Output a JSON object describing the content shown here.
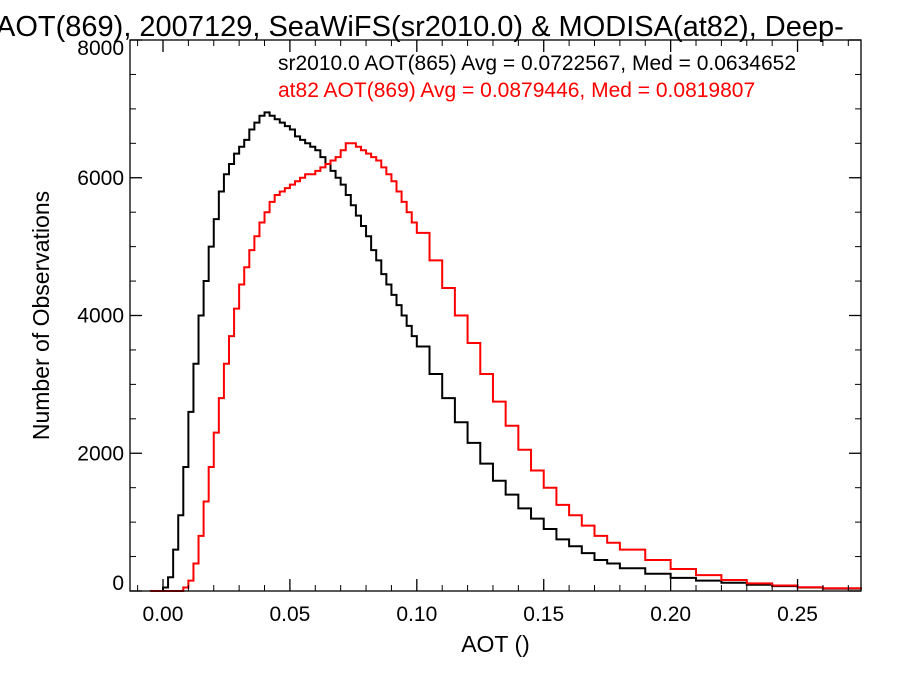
{
  "chart_data": {
    "type": "line",
    "title": "AOT(869), 2007129, SeaWiFS(sr2010.0) & MODISA(at82), Deep-",
    "xlabel": "AOT ()",
    "ylabel": "Number of Observations",
    "xlim": [
      -0.013,
      0.275
    ],
    "ylim": [
      0,
      8000
    ],
    "x_ticks": [
      0.0,
      0.05,
      0.1,
      0.15,
      0.2,
      0.25
    ],
    "x_tick_labels": [
      "0.00",
      "0.05",
      "0.10",
      "0.15",
      "0.20",
      "0.25"
    ],
    "y_ticks": [
      0,
      2000,
      4000,
      6000,
      8000
    ],
    "y_tick_labels": [
      "0",
      "2000",
      "4000",
      "6000",
      "8000"
    ],
    "grid": false,
    "legend_position": "top-right",
    "series": [
      {
        "name": "sr2010.0",
        "legend_text": "sr2010.0 AOT(865) Avg = 0.0722567, Med = 0.0634652",
        "color": "#000000",
        "x": [
          -0.005,
          0.0,
          0.002,
          0.004,
          0.006,
          0.008,
          0.01,
          0.012,
          0.014,
          0.016,
          0.018,
          0.02,
          0.022,
          0.024,
          0.026,
          0.028,
          0.03,
          0.032,
          0.034,
          0.036,
          0.038,
          0.04,
          0.042,
          0.044,
          0.046,
          0.048,
          0.05,
          0.052,
          0.054,
          0.056,
          0.058,
          0.06,
          0.062,
          0.064,
          0.066,
          0.068,
          0.07,
          0.072,
          0.074,
          0.076,
          0.078,
          0.08,
          0.082,
          0.084,
          0.086,
          0.088,
          0.09,
          0.092,
          0.094,
          0.096,
          0.098,
          0.1,
          0.105,
          0.11,
          0.115,
          0.12,
          0.125,
          0.13,
          0.135,
          0.14,
          0.145,
          0.15,
          0.155,
          0.16,
          0.165,
          0.17,
          0.175,
          0.18,
          0.19,
          0.2,
          0.21,
          0.22,
          0.23,
          0.24,
          0.25,
          0.26,
          0.275
        ],
        "values": [
          0,
          50,
          200,
          600,
          1100,
          1800,
          2600,
          3300,
          4000,
          4500,
          5000,
          5400,
          5800,
          6050,
          6200,
          6350,
          6450,
          6550,
          6700,
          6800,
          6900,
          6950,
          6900,
          6850,
          6800,
          6750,
          6700,
          6600,
          6550,
          6500,
          6450,
          6400,
          6300,
          6200,
          6100,
          6000,
          5900,
          5750,
          5600,
          5450,
          5300,
          5150,
          4950,
          4800,
          4600,
          4450,
          4300,
          4150,
          4000,
          3850,
          3700,
          3550,
          3150,
          2800,
          2450,
          2150,
          1850,
          1600,
          1400,
          1200,
          1050,
          900,
          750,
          650,
          550,
          450,
          400,
          330,
          250,
          190,
          150,
          120,
          90,
          70,
          50,
          35,
          20
        ]
      },
      {
        "name": "at82",
        "legend_text": "at82 AOT(869) Avg = 0.0879446, Med = 0.0819807",
        "color": "#ff0000",
        "x": [
          -0.005,
          0.004,
          0.008,
          0.01,
          0.012,
          0.014,
          0.016,
          0.018,
          0.02,
          0.022,
          0.024,
          0.026,
          0.028,
          0.03,
          0.032,
          0.034,
          0.036,
          0.038,
          0.04,
          0.042,
          0.044,
          0.046,
          0.048,
          0.05,
          0.052,
          0.054,
          0.056,
          0.058,
          0.06,
          0.062,
          0.064,
          0.066,
          0.068,
          0.07,
          0.072,
          0.074,
          0.076,
          0.078,
          0.08,
          0.082,
          0.084,
          0.086,
          0.088,
          0.09,
          0.092,
          0.094,
          0.096,
          0.098,
          0.1,
          0.105,
          0.11,
          0.115,
          0.12,
          0.125,
          0.13,
          0.135,
          0.14,
          0.145,
          0.15,
          0.155,
          0.16,
          0.165,
          0.17,
          0.175,
          0.18,
          0.19,
          0.2,
          0.21,
          0.22,
          0.23,
          0.24,
          0.25,
          0.26,
          0.275
        ],
        "values": [
          0,
          0,
          50,
          150,
          400,
          800,
          1300,
          1800,
          2300,
          2800,
          3300,
          3700,
          4100,
          4450,
          4700,
          4950,
          5150,
          5350,
          5500,
          5650,
          5750,
          5800,
          5850,
          5900,
          5950,
          6000,
          6050,
          6050,
          6100,
          6150,
          6200,
          6250,
          6300,
          6400,
          6500,
          6500,
          6450,
          6400,
          6350,
          6300,
          6250,
          6150,
          6050,
          5950,
          5800,
          5650,
          5500,
          5350,
          5200,
          4800,
          4400,
          4000,
          3600,
          3150,
          2750,
          2400,
          2050,
          1750,
          1500,
          1250,
          1100,
          950,
          800,
          700,
          600,
          450,
          320,
          230,
          160,
          110,
          80,
          55,
          40,
          25
        ]
      }
    ]
  }
}
